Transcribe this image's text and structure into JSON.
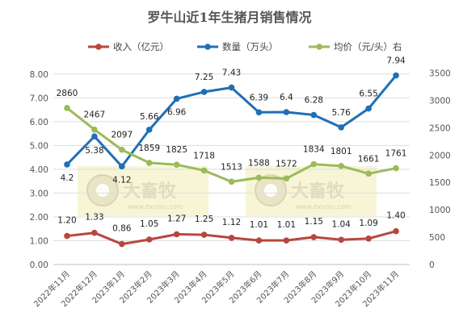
{
  "chart_data": {
    "type": "line",
    "title": "罗牛山近1年生猪月销售情况",
    "categories": [
      "2022年11月",
      "2022年12月",
      "2023年1月",
      "2023年2月",
      "2023年3月",
      "2023年4月",
      "2023年5月",
      "2023年6月",
      "2023年7月",
      "2023年8月",
      "2023年9月",
      "2023年10月",
      "2023年11月"
    ],
    "y_left": {
      "ticks": [
        "0.00",
        "1.00",
        "2.00",
        "3.00",
        "4.00",
        "5.00",
        "6.00",
        "7.00",
        "8.00"
      ],
      "range": [
        0,
        8.5
      ]
    },
    "y_right": {
      "ticks": [
        "0",
        "500",
        "1000",
        "1500",
        "2000",
        "2500",
        "3000",
        "3500"
      ],
      "range": [
        0,
        3700
      ]
    },
    "legend_position": "top",
    "grid": true,
    "series": [
      {
        "name": "收入（亿元）",
        "axis": "left",
        "color": "#b8463f",
        "values": [
          1.2,
          1.33,
          0.86,
          1.05,
          1.27,
          1.25,
          1.12,
          1.01,
          1.01,
          1.15,
          1.04,
          1.09,
          1.4
        ],
        "labels": [
          "1.20",
          "1.33",
          "0.86",
          "1.05",
          "1.27",
          "1.25",
          "1.12",
          "1.01",
          "1.01",
          "1.15",
          "1.04",
          "1.09",
          "1.40"
        ]
      },
      {
        "name": "数量（万头）",
        "axis": "left",
        "color": "#1f6fb6",
        "values": [
          4.2,
          5.38,
          4.12,
          5.66,
          6.96,
          7.25,
          7.43,
          6.39,
          6.4,
          6.28,
          5.76,
          6.55,
          7.94
        ],
        "labels": [
          "4.2",
          "5.38",
          "4.12",
          "5.66",
          "6.96",
          "7.25",
          "7.43",
          "6.39",
          "6.4",
          "6.28",
          "5.76",
          "6.55",
          "7.94"
        ]
      },
      {
        "name": "均价（元/头）右",
        "axis": "right",
        "color": "#9bbb59",
        "values": [
          2860,
          2467,
          2097,
          1859,
          1825,
          1718,
          1513,
          1588,
          1572,
          1834,
          1801,
          1661,
          1761
        ],
        "labels": [
          "2860",
          "2467",
          "2097",
          "1859",
          "1825",
          "1718",
          "1513",
          "1588",
          "1572",
          "1834",
          "1801",
          "1661",
          "1761"
        ]
      }
    ],
    "watermark": {
      "brand": "大畜牧",
      "url": "www.dxumu.com"
    }
  }
}
